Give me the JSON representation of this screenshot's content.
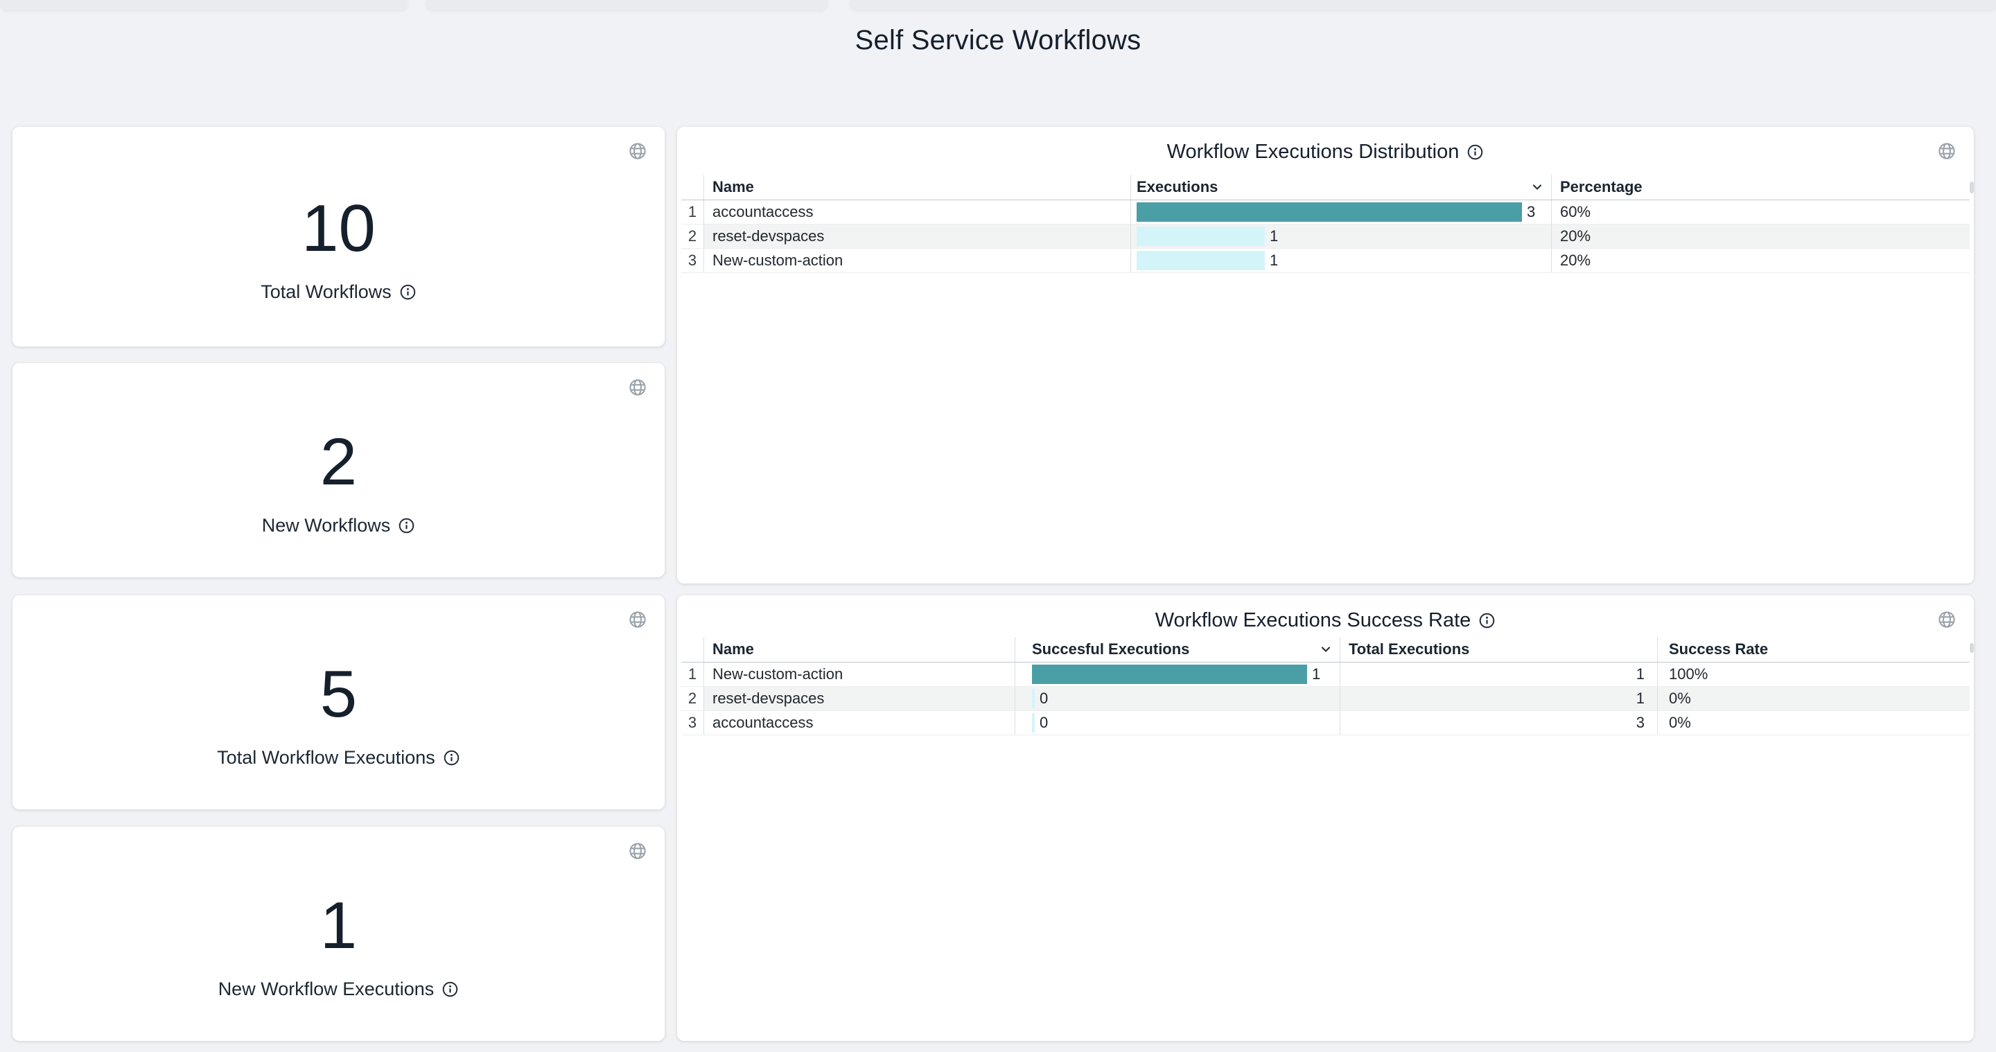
{
  "page": {
    "title": "Self Service Workflows"
  },
  "colors": {
    "background": "#f1f2f5",
    "card": "#ffffff",
    "text_dark": "#161f2c",
    "bar_teal": "#4a9ea6",
    "bar_cyan": "#d3f5fa",
    "icon_gray": "#9aa2aa",
    "alt_row": "#f2f3f3"
  },
  "icons": {
    "globe": "globe-icon",
    "info": "info-icon",
    "sort": "chevron-down-icon"
  },
  "stat_cards": [
    {
      "value": "10",
      "label": "Total Workflows"
    },
    {
      "value": "2",
      "label": "New Workflows"
    },
    {
      "value": "5",
      "label": "Total Workflow Executions"
    },
    {
      "value": "1",
      "label": "New Workflow Executions"
    }
  ],
  "panels": [
    {
      "title": "Workflow Executions Distribution",
      "bar_max": 3,
      "columns": [
        {
          "label": "Name"
        },
        {
          "label": "Executions",
          "sorted": "desc"
        },
        {
          "label": "Percentage"
        }
      ],
      "rows": [
        {
          "index": "1",
          "name": "accountaccess",
          "executions": 3,
          "percentage": "60%"
        },
        {
          "index": "2",
          "name": "reset-devspaces",
          "executions": 1,
          "percentage": "20%"
        },
        {
          "index": "3",
          "name": "New-custom-action",
          "executions": 1,
          "percentage": "20%"
        }
      ]
    },
    {
      "title": "Workflow Executions Success Rate",
      "bar_max": 1,
      "columns": [
        {
          "label": "Name"
        },
        {
          "label": "Succesful Executions",
          "sorted": "desc"
        },
        {
          "label": "Total Executions"
        },
        {
          "label": "Success Rate"
        }
      ],
      "rows": [
        {
          "index": "1",
          "name": "New-custom-action",
          "successful": 1,
          "total": "1",
          "rate": "100%"
        },
        {
          "index": "2",
          "name": "reset-devspaces",
          "successful": 0,
          "total": "1",
          "rate": "0%"
        },
        {
          "index": "3",
          "name": "accountaccess",
          "successful": 0,
          "total": "3",
          "rate": "0%"
        }
      ]
    }
  ]
}
